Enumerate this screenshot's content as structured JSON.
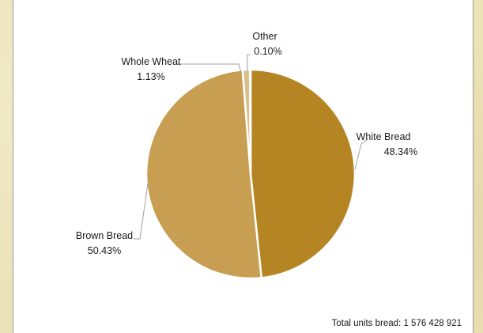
{
  "chart_data": {
    "type": "pie",
    "categories": [
      "White Bread",
      "Brown Bread",
      "Whole Wheat",
      "Other"
    ],
    "values": [
      48.34,
      50.43,
      1.13,
      0.1
    ],
    "value_labels": [
      "48.34%",
      "50.43%",
      "1.13%",
      "0.10%"
    ],
    "colors": [
      "#b58523",
      "#c79e52",
      "#d9bf8c",
      "#e8d8b5"
    ],
    "legend": "none",
    "start": "top, clockwise"
  },
  "footer": {
    "total_label": "Total units bread:",
    "total_value": "1 576 428 921"
  }
}
